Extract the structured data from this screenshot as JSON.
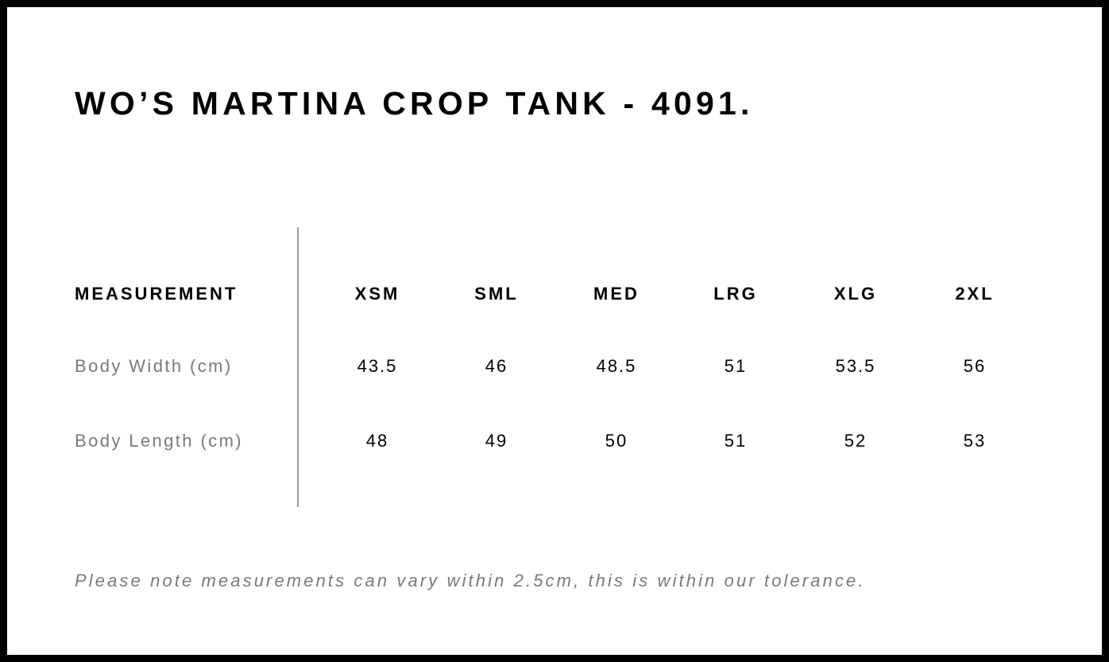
{
  "title": "WO’S MARTINA CROP TANK - 4091.",
  "table": {
    "header_label": "MEASUREMENT",
    "sizes": [
      "XSM",
      "SML",
      "MED",
      "LRG",
      "XLG",
      "2XL"
    ],
    "rows": [
      {
        "label": "Body Width (cm)",
        "values": [
          "43.5",
          "46",
          "48.5",
          "51",
          "53.5",
          "56"
        ]
      },
      {
        "label": "Body Length (cm)",
        "values": [
          "48",
          "49",
          "50",
          "51",
          "52",
          "53"
        ]
      }
    ]
  },
  "note": "Please note measurements can vary within 2.5cm, this is within our tolerance."
}
